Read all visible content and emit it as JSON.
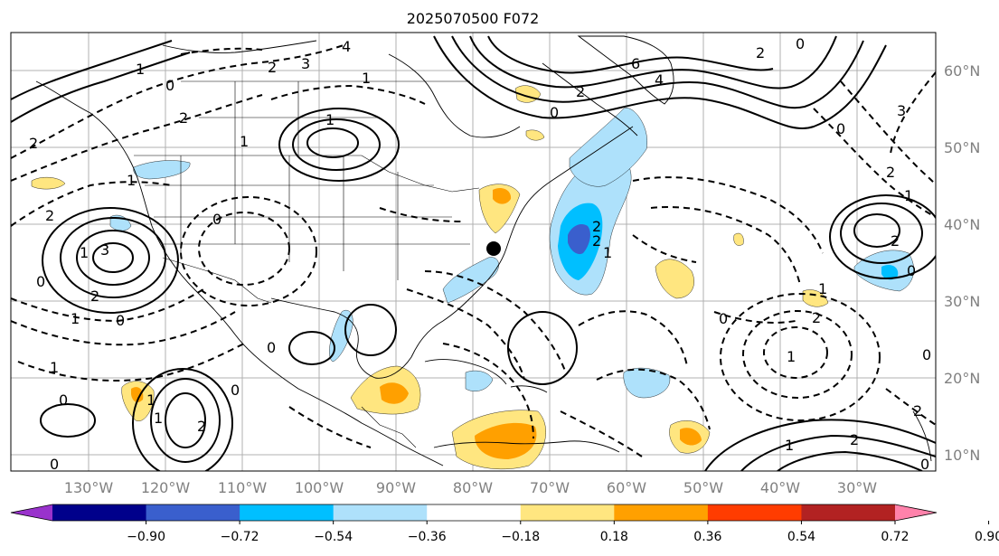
{
  "title": "2025070500 F072",
  "map": {
    "lon_labels": [
      "130°W",
      "120°W",
      "110°W",
      "100°W",
      "90°W",
      "80°W",
      "70°W",
      "60°W",
      "50°W",
      "40°W",
      "30°W"
    ],
    "lat_labels": [
      "60°N",
      "50°N",
      "40°N",
      "30°N",
      "20°N",
      "10°N"
    ],
    "marker": "black-dot-station",
    "contour_labels": [
      "4",
      "3",
      "2",
      "1",
      "0",
      "1",
      "2",
      "6",
      "4",
      "2",
      "0",
      "2",
      "1",
      "2",
      "1",
      "0",
      "0",
      "1",
      "2",
      "1",
      "0",
      "2",
      "1",
      "0",
      "3",
      "2",
      "1",
      "0",
      "1",
      "2",
      "3",
      "2",
      "1",
      "0",
      "0",
      "2",
      "1",
      "0",
      "2",
      "1",
      "0",
      "1",
      "2",
      "2",
      "1",
      "0",
      "0",
      "0",
      "1",
      "2",
      "0"
    ]
  },
  "colorbar": {
    "ticks": [
      "−0.90",
      "−0.72",
      "−0.54",
      "−0.36",
      "−0.18",
      "0.18",
      "0.36",
      "0.54",
      "0.72",
      "0.90"
    ],
    "colors": [
      "#9932cc",
      "#00008b",
      "#3a5fcd",
      "#00bfff",
      "#aee1fb",
      "#ffffff",
      "#ffe680",
      "#ffa000",
      "#ff3c00",
      "#b22222",
      "#ff82ab"
    ],
    "extend": "both"
  }
}
